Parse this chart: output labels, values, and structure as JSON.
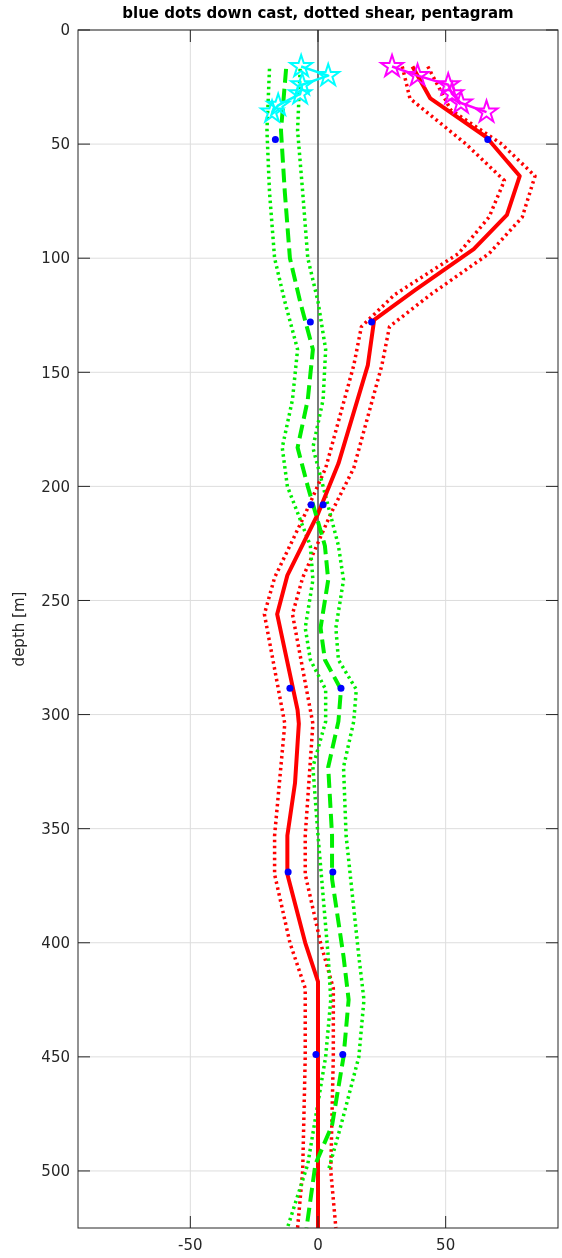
{
  "chart_data": {
    "type": "line",
    "title": "blue dots down cast, dotted shear, pentagram",
    "ylabel": "depth [m]",
    "xlim": [
      -94,
      94
    ],
    "xticks": [
      -50,
      0,
      50
    ],
    "ylim": [
      525,
      0
    ],
    "yticks": [
      0,
      50,
      100,
      150,
      200,
      250,
      300,
      350,
      400,
      450,
      500
    ],
    "grid": true,
    "ref_lines": [
      {
        "axis": "x",
        "value": 0,
        "color": "#555555",
        "line_style": "solid"
      }
    ],
    "series": [
      {
        "color": "#ff0000",
        "line_style": "dotted",
        "marker": "none",
        "x": [
          33,
          36,
          58,
          73,
          67,
          55,
          30,
          17,
          14,
          3,
          -5,
          -17,
          -21,
          -14,
          -13,
          -17,
          -17,
          -11,
          -5,
          -5,
          -6,
          -8
        ],
        "values": [
          16,
          30,
          50,
          66,
          82,
          98,
          116,
          130,
          147,
          192,
          212,
          240,
          256,
          298,
          304,
          353,
          370,
          400,
          420,
          450,
          500,
          525
        ]
      },
      {
        "color": "#ff0000",
        "line_style": "dotted",
        "marker": "none",
        "x": [
          43,
          52,
          72,
          85,
          80,
          67,
          44,
          28,
          25,
          14,
          5,
          -6,
          -10,
          -3,
          -2,
          -5,
          -5,
          1,
          6,
          6,
          5,
          7
        ],
        "values": [
          16,
          35,
          50,
          64,
          82,
          98,
          116,
          130,
          147,
          192,
          212,
          240,
          256,
          298,
          304,
          353,
          370,
          400,
          420,
          450,
          500,
          525
        ]
      },
      {
        "color": "#00ee00",
        "line_style": "dotted",
        "marker": "none",
        "x": [
          -19,
          -20,
          -19,
          -17,
          -13,
          -8,
          -10,
          -14,
          -12,
          -3,
          -2,
          -5,
          -3,
          3,
          3,
          -2,
          0,
          4,
          5,
          3,
          -4,
          -12
        ],
        "values": [
          17,
          44,
          71,
          100,
          119,
          140,
          162,
          183,
          200,
          226,
          241,
          262,
          276,
          289,
          303,
          323,
          353,
          406,
          425,
          450,
          497,
          525
        ]
      },
      {
        "color": "#00ee00",
        "line_style": "dotted",
        "marker": "none",
        "x": [
          -7,
          -8,
          -6,
          -4,
          0,
          3,
          2,
          -2,
          2,
          8,
          10,
          7,
          8,
          15,
          14,
          10,
          11,
          16,
          18,
          16,
          9,
          4
        ],
        "values": [
          17,
          44,
          71,
          100,
          119,
          140,
          162,
          183,
          200,
          226,
          241,
          262,
          276,
          289,
          303,
          323,
          353,
          406,
          425,
          450,
          480,
          500
        ]
      },
      {
        "color": "#ff0000",
        "line_style": "solid",
        "marker": "none",
        "x": [
          37,
          44,
          66,
          79,
          74,
          61,
          38,
          22,
          19.5,
          8,
          0,
          -12,
          -16,
          -8,
          -7.5,
          -9,
          -12,
          -12,
          -5,
          0,
          0,
          0
        ],
        "values": [
          16,
          30,
          47,
          64,
          81,
          96,
          114,
          127,
          147,
          190,
          212,
          239,
          256,
          298,
          304,
          330,
          353,
          370,
          400,
          417,
          470,
          525
        ]
      },
      {
        "color": "#00ee00",
        "line_style": "dashed",
        "marker": "none",
        "x": [
          -12.5,
          -14.5,
          -13,
          -11,
          -7,
          -2,
          -4,
          -8,
          -4,
          2.7,
          4,
          1,
          2.7,
          9,
          8,
          4,
          5.5,
          5.5,
          10,
          12,
          10,
          5.5,
          -1,
          -4.5
        ],
        "values": [
          17,
          44,
          71,
          100,
          119,
          140,
          162,
          183,
          200,
          226,
          241,
          262,
          276,
          289,
          303,
          323,
          353,
          372,
          406,
          425,
          450,
          480,
          497,
          525
        ]
      },
      {
        "color": "#00ffff",
        "line_style": "solid",
        "marker": "star",
        "x": [
          -6.6,
          4,
          -6.2,
          -7,
          -15.6,
          -18
        ],
        "values": [
          16,
          20,
          24,
          28,
          33,
          36
        ]
      },
      {
        "color": "#ff00ff",
        "line_style": "solid",
        "marker": "star",
        "x": [
          29,
          39,
          51,
          52.5,
          56,
          66
        ],
        "values": [
          16,
          20,
          24,
          28,
          32,
          36
        ]
      },
      {
        "type": "scatter",
        "color": "#0000ff",
        "marker": "circle",
        "x": [
          -16.7,
          66.5,
          -3,
          21,
          -2.7,
          2,
          9,
          -11,
          -11.7,
          5.8,
          -0.8,
          9.7
        ],
        "values": [
          48,
          48,
          128,
          128,
          208,
          208,
          288.5,
          288.5,
          369,
          369,
          449,
          449
        ]
      }
    ]
  }
}
